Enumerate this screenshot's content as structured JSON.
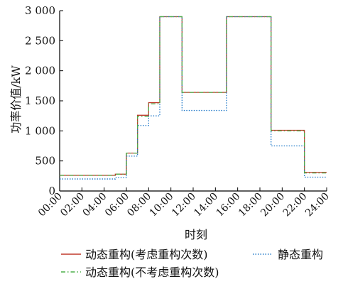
{
  "chart_data": {
    "type": "line",
    "step": true,
    "xlabel": "时刻",
    "ylabel": "功率价值/kW",
    "xlim": [
      0,
      24
    ],
    "ylim": [
      0,
      3000
    ],
    "x_ticks": [
      "00:00",
      "02:00",
      "04:00",
      "06:00",
      "08:00",
      "10:00",
      "12:00",
      "14:00",
      "16:00",
      "18:00",
      "20:00",
      "22:00",
      "24:00"
    ],
    "y_ticks": [
      "0",
      "500",
      "1 000",
      "1 500",
      "2 000",
      "2 500",
      "3 000"
    ],
    "grid": false,
    "legend": "bottom",
    "series": [
      {
        "name": "动态重构(考虑重构次数)",
        "color": "#c0392b",
        "dash": "solid",
        "x": [
          0,
          1,
          2,
          3,
          4,
          5,
          6,
          7,
          8,
          9,
          10,
          11,
          12,
          13,
          14,
          15,
          16,
          17,
          18,
          19,
          20,
          21,
          22,
          23
        ],
        "values": [
          260,
          260,
          260,
          260,
          260,
          280,
          630,
          1260,
          1470,
          2900,
          2900,
          1640,
          1640,
          1640,
          1640,
          2900,
          2900,
          2900,
          2900,
          1010,
          1010,
          1010,
          310,
          310
        ]
      },
      {
        "name": "静态重构",
        "color": "#1f78c8",
        "dash": "dotted",
        "x": [
          0,
          1,
          2,
          3,
          4,
          5,
          6,
          7,
          8,
          9,
          10,
          11,
          12,
          13,
          14,
          15,
          16,
          17,
          18,
          19,
          20,
          21,
          22,
          23
        ],
        "values": [
          200,
          200,
          200,
          200,
          200,
          220,
          580,
          1090,
          1250,
          2900,
          2900,
          1340,
          1340,
          1340,
          1340,
          2900,
          2900,
          2900,
          2900,
          750,
          750,
          750,
          230,
          230
        ]
      },
      {
        "name": "动态重构(不考虑重构次数)",
        "color": "#4daf4a",
        "dash": "dashdot",
        "x": [
          0,
          1,
          2,
          3,
          4,
          5,
          6,
          7,
          8,
          9,
          10,
          11,
          12,
          13,
          14,
          15,
          16,
          17,
          18,
          19,
          20,
          21,
          22,
          23
        ],
        "values": [
          260,
          260,
          260,
          260,
          260,
          280,
          630,
          1240,
          1450,
          2900,
          2900,
          1640,
          1640,
          1640,
          1640,
          2900,
          2900,
          2900,
          2900,
          1000,
          1000,
          1000,
          300,
          300
        ]
      }
    ]
  }
}
